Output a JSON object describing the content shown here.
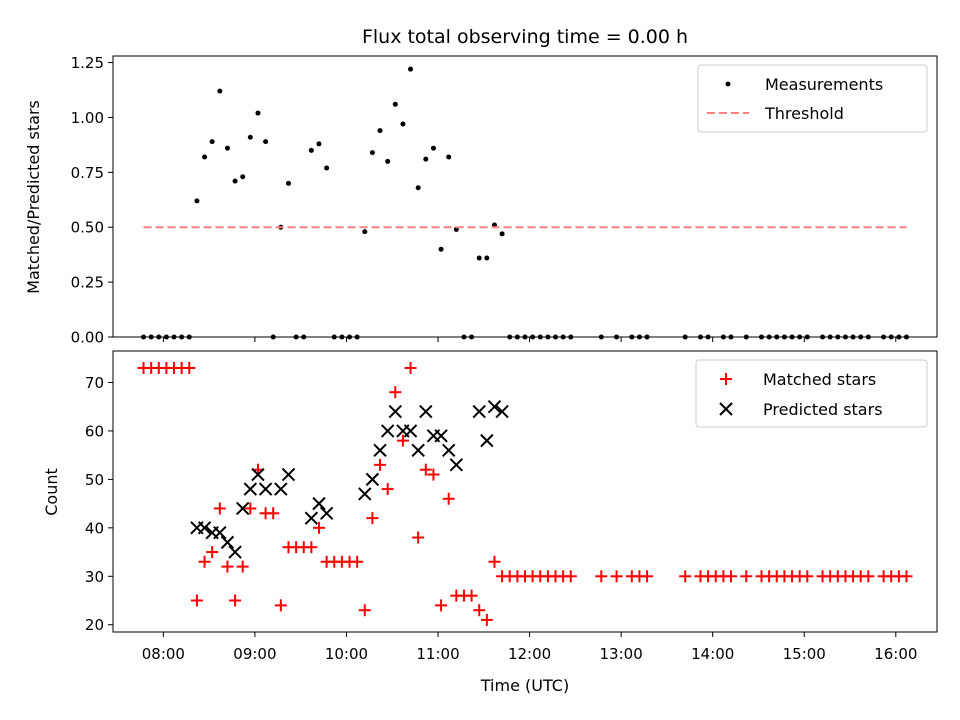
{
  "figure": {
    "title": "Flux total observing time = 0.00 h"
  },
  "chart_data": [
    {
      "type": "scatter",
      "ylabel": "Matched/Predicted stars",
      "xlim": [
        "07:27",
        "16:27"
      ],
      "ylim": [
        0,
        1.28
      ],
      "yticks": [
        "0.00",
        "0.25",
        "0.50",
        "0.75",
        "1.00",
        "1.25"
      ],
      "legend_position": "upper right",
      "grid": false,
      "series": [
        {
          "name": "Measurements",
          "color": "#000000",
          "marker": "dot",
          "points": [
            [
              "07:47",
              0
            ],
            [
              "07:52",
              0
            ],
            [
              "07:57",
              0
            ],
            [
              "08:02",
              0
            ],
            [
              "08:07",
              0
            ],
            [
              "08:12",
              0
            ],
            [
              "08:17",
              0
            ],
            [
              "08:22",
              0.62
            ],
            [
              "08:27",
              0.82
            ],
            [
              "08:32",
              0.89
            ],
            [
              "08:37",
              1.12
            ],
            [
              "08:42",
              0.86
            ],
            [
              "08:47",
              0.71
            ],
            [
              "08:52",
              0.73
            ],
            [
              "08:57",
              0.91
            ],
            [
              "09:02",
              1.02
            ],
            [
              "09:07",
              0.89
            ],
            [
              "09:12",
              0.0
            ],
            [
              "09:17",
              0.5
            ],
            [
              "09:22",
              0.7
            ],
            [
              "09:27",
              0.0
            ],
            [
              "09:32",
              0.0
            ],
            [
              "09:37",
              0.85
            ],
            [
              "09:42",
              0.88
            ],
            [
              "09:47",
              0.77
            ],
            [
              "09:52",
              0.0
            ],
            [
              "09:57",
              0.0
            ],
            [
              "10:02",
              0.0
            ],
            [
              "10:07",
              0.0
            ],
            [
              "10:12",
              0.48
            ],
            [
              "10:17",
              0.84
            ],
            [
              "10:22",
              0.94
            ],
            [
              "10:27",
              0.8
            ],
            [
              "10:32",
              1.06
            ],
            [
              "10:37",
              0.97
            ],
            [
              "10:42",
              1.22
            ],
            [
              "10:47",
              0.68
            ],
            [
              "10:52",
              0.81
            ],
            [
              "10:57",
              0.86
            ],
            [
              "11:02",
              0.4
            ],
            [
              "11:07",
              0.82
            ],
            [
              "11:12",
              0.49
            ],
            [
              "11:17",
              0.0
            ],
            [
              "11:22",
              0.0
            ],
            [
              "11:27",
              0.36
            ],
            [
              "11:32",
              0.36
            ],
            [
              "11:37",
              0.51
            ],
            [
              "11:42",
              0.47
            ],
            [
              "11:47",
              0
            ],
            [
              "11:52",
              0
            ],
            [
              "11:57",
              0
            ],
            [
              "12:02",
              0
            ],
            [
              "12:07",
              0
            ],
            [
              "12:12",
              0
            ],
            [
              "12:17",
              0
            ],
            [
              "12:22",
              0
            ],
            [
              "12:27",
              0
            ],
            [
              "12:47",
              0
            ],
            [
              "12:57",
              0
            ],
            [
              "13:07",
              0
            ],
            [
              "13:12",
              0
            ],
            [
              "13:17",
              0
            ],
            [
              "13:42",
              0
            ],
            [
              "13:52",
              0
            ],
            [
              "13:57",
              0
            ],
            [
              "14:07",
              0
            ],
            [
              "14:12",
              0
            ],
            [
              "14:22",
              0
            ],
            [
              "14:32",
              0
            ],
            [
              "14:37",
              0
            ],
            [
              "14:42",
              0
            ],
            [
              "14:47",
              0
            ],
            [
              "14:52",
              0
            ],
            [
              "14:57",
              0
            ],
            [
              "15:02",
              0
            ],
            [
              "15:12",
              0
            ],
            [
              "15:17",
              0
            ],
            [
              "15:22",
              0
            ],
            [
              "15:27",
              0
            ],
            [
              "15:32",
              0
            ],
            [
              "15:37",
              0
            ],
            [
              "15:42",
              0
            ],
            [
              "15:52",
              0
            ],
            [
              "15:57",
              0
            ],
            [
              "16:02",
              0
            ],
            [
              "16:07",
              0
            ]
          ]
        },
        {
          "name": "Threshold",
          "color": "#ff8080",
          "line_style": "dashed",
          "points": [
            [
              "07:47",
              0.5
            ],
            [
              "16:07",
              0.5
            ]
          ]
        }
      ]
    },
    {
      "type": "scatter",
      "ylabel": "Count",
      "xlabel": "Time (UTC)",
      "xlim": [
        "07:27",
        "16:27"
      ],
      "ylim": [
        18.5,
        76.5
      ],
      "yticks": [
        "20",
        "30",
        "40",
        "50",
        "60",
        "70"
      ],
      "xticks": [
        "08:00",
        "09:00",
        "10:00",
        "11:00",
        "12:00",
        "13:00",
        "14:00",
        "15:00",
        "16:00"
      ],
      "legend_position": "upper right",
      "grid": false,
      "series": [
        {
          "name": "Matched stars",
          "color": "#ff0000",
          "marker": "plus",
          "points": [
            [
              "07:47",
              73
            ],
            [
              "07:52",
              73
            ],
            [
              "07:57",
              73
            ],
            [
              "08:02",
              73
            ],
            [
              "08:07",
              73
            ],
            [
              "08:12",
              73
            ],
            [
              "08:17",
              73
            ],
            [
              "08:22",
              25
            ],
            [
              "08:27",
              33
            ],
            [
              "08:32",
              35
            ],
            [
              "08:37",
              44
            ],
            [
              "08:42",
              32
            ],
            [
              "08:47",
              25
            ],
            [
              "08:52",
              32
            ],
            [
              "08:57",
              44
            ],
            [
              "09:02",
              52
            ],
            [
              "09:07",
              43
            ],
            [
              "09:12",
              43
            ],
            [
              "09:17",
              24
            ],
            [
              "09:22",
              36
            ],
            [
              "09:27",
              36
            ],
            [
              "09:32",
              36
            ],
            [
              "09:37",
              36
            ],
            [
              "09:42",
              40
            ],
            [
              "09:47",
              33
            ],
            [
              "09:52",
              33
            ],
            [
              "09:57",
              33
            ],
            [
              "10:02",
              33
            ],
            [
              "10:07",
              33
            ],
            [
              "10:12",
              23
            ],
            [
              "10:17",
              42
            ],
            [
              "10:22",
              53
            ],
            [
              "10:27",
              48
            ],
            [
              "10:32",
              68
            ],
            [
              "10:37",
              58
            ],
            [
              "10:42",
              73
            ],
            [
              "10:47",
              38
            ],
            [
              "10:52",
              52
            ],
            [
              "10:57",
              51
            ],
            [
              "11:02",
              24
            ],
            [
              "11:07",
              46
            ],
            [
              "11:12",
              26
            ],
            [
              "11:17",
              26
            ],
            [
              "11:22",
              26
            ],
            [
              "11:27",
              23
            ],
            [
              "11:32",
              21
            ],
            [
              "11:37",
              33
            ],
            [
              "11:42",
              30
            ],
            [
              "11:47",
              30
            ],
            [
              "11:52",
              30
            ],
            [
              "11:57",
              30
            ],
            [
              "12:02",
              30
            ],
            [
              "12:07",
              30
            ],
            [
              "12:12",
              30
            ],
            [
              "12:17",
              30
            ],
            [
              "12:22",
              30
            ],
            [
              "12:27",
              30
            ],
            [
              "12:47",
              30
            ],
            [
              "12:57",
              30
            ],
            [
              "13:07",
              30
            ],
            [
              "13:12",
              30
            ],
            [
              "13:17",
              30
            ],
            [
              "13:42",
              30
            ],
            [
              "13:52",
              30
            ],
            [
              "13:57",
              30
            ],
            [
              "14:02",
              30
            ],
            [
              "14:07",
              30
            ],
            [
              "14:12",
              30
            ],
            [
              "14:22",
              30
            ],
            [
              "14:32",
              30
            ],
            [
              "14:37",
              30
            ],
            [
              "14:42",
              30
            ],
            [
              "14:47",
              30
            ],
            [
              "14:52",
              30
            ],
            [
              "14:57",
              30
            ],
            [
              "15:02",
              30
            ],
            [
              "15:12",
              30
            ],
            [
              "15:17",
              30
            ],
            [
              "15:22",
              30
            ],
            [
              "15:27",
              30
            ],
            [
              "15:32",
              30
            ],
            [
              "15:37",
              30
            ],
            [
              "15:42",
              30
            ],
            [
              "15:52",
              30
            ],
            [
              "15:57",
              30
            ],
            [
              "16:02",
              30
            ],
            [
              "16:07",
              30
            ]
          ]
        },
        {
          "name": "Predicted stars",
          "color": "#000000",
          "marker": "x",
          "points": [
            [
              "08:22",
              40
            ],
            [
              "08:27",
              40
            ],
            [
              "08:32",
              39
            ],
            [
              "08:37",
              39
            ],
            [
              "08:42",
              37
            ],
            [
              "08:47",
              35
            ],
            [
              "08:52",
              44
            ],
            [
              "08:57",
              48
            ],
            [
              "09:02",
              51
            ],
            [
              "09:07",
              48
            ],
            [
              "09:17",
              48
            ],
            [
              "09:22",
              51
            ],
            [
              "09:37",
              42
            ],
            [
              "09:42",
              45
            ],
            [
              "09:47",
              43
            ],
            [
              "10:12",
              47
            ],
            [
              "10:17",
              50
            ],
            [
              "10:22",
              56
            ],
            [
              "10:27",
              60
            ],
            [
              "10:32",
              64
            ],
            [
              "10:37",
              60
            ],
            [
              "10:42",
              60
            ],
            [
              "10:47",
              56
            ],
            [
              "10:52",
              64
            ],
            [
              "10:57",
              59
            ],
            [
              "11:02",
              59
            ],
            [
              "11:07",
              56
            ],
            [
              "11:12",
              53
            ],
            [
              "11:27",
              64
            ],
            [
              "11:32",
              58
            ],
            [
              "11:37",
              65
            ],
            [
              "11:42",
              64
            ]
          ]
        }
      ]
    }
  ]
}
